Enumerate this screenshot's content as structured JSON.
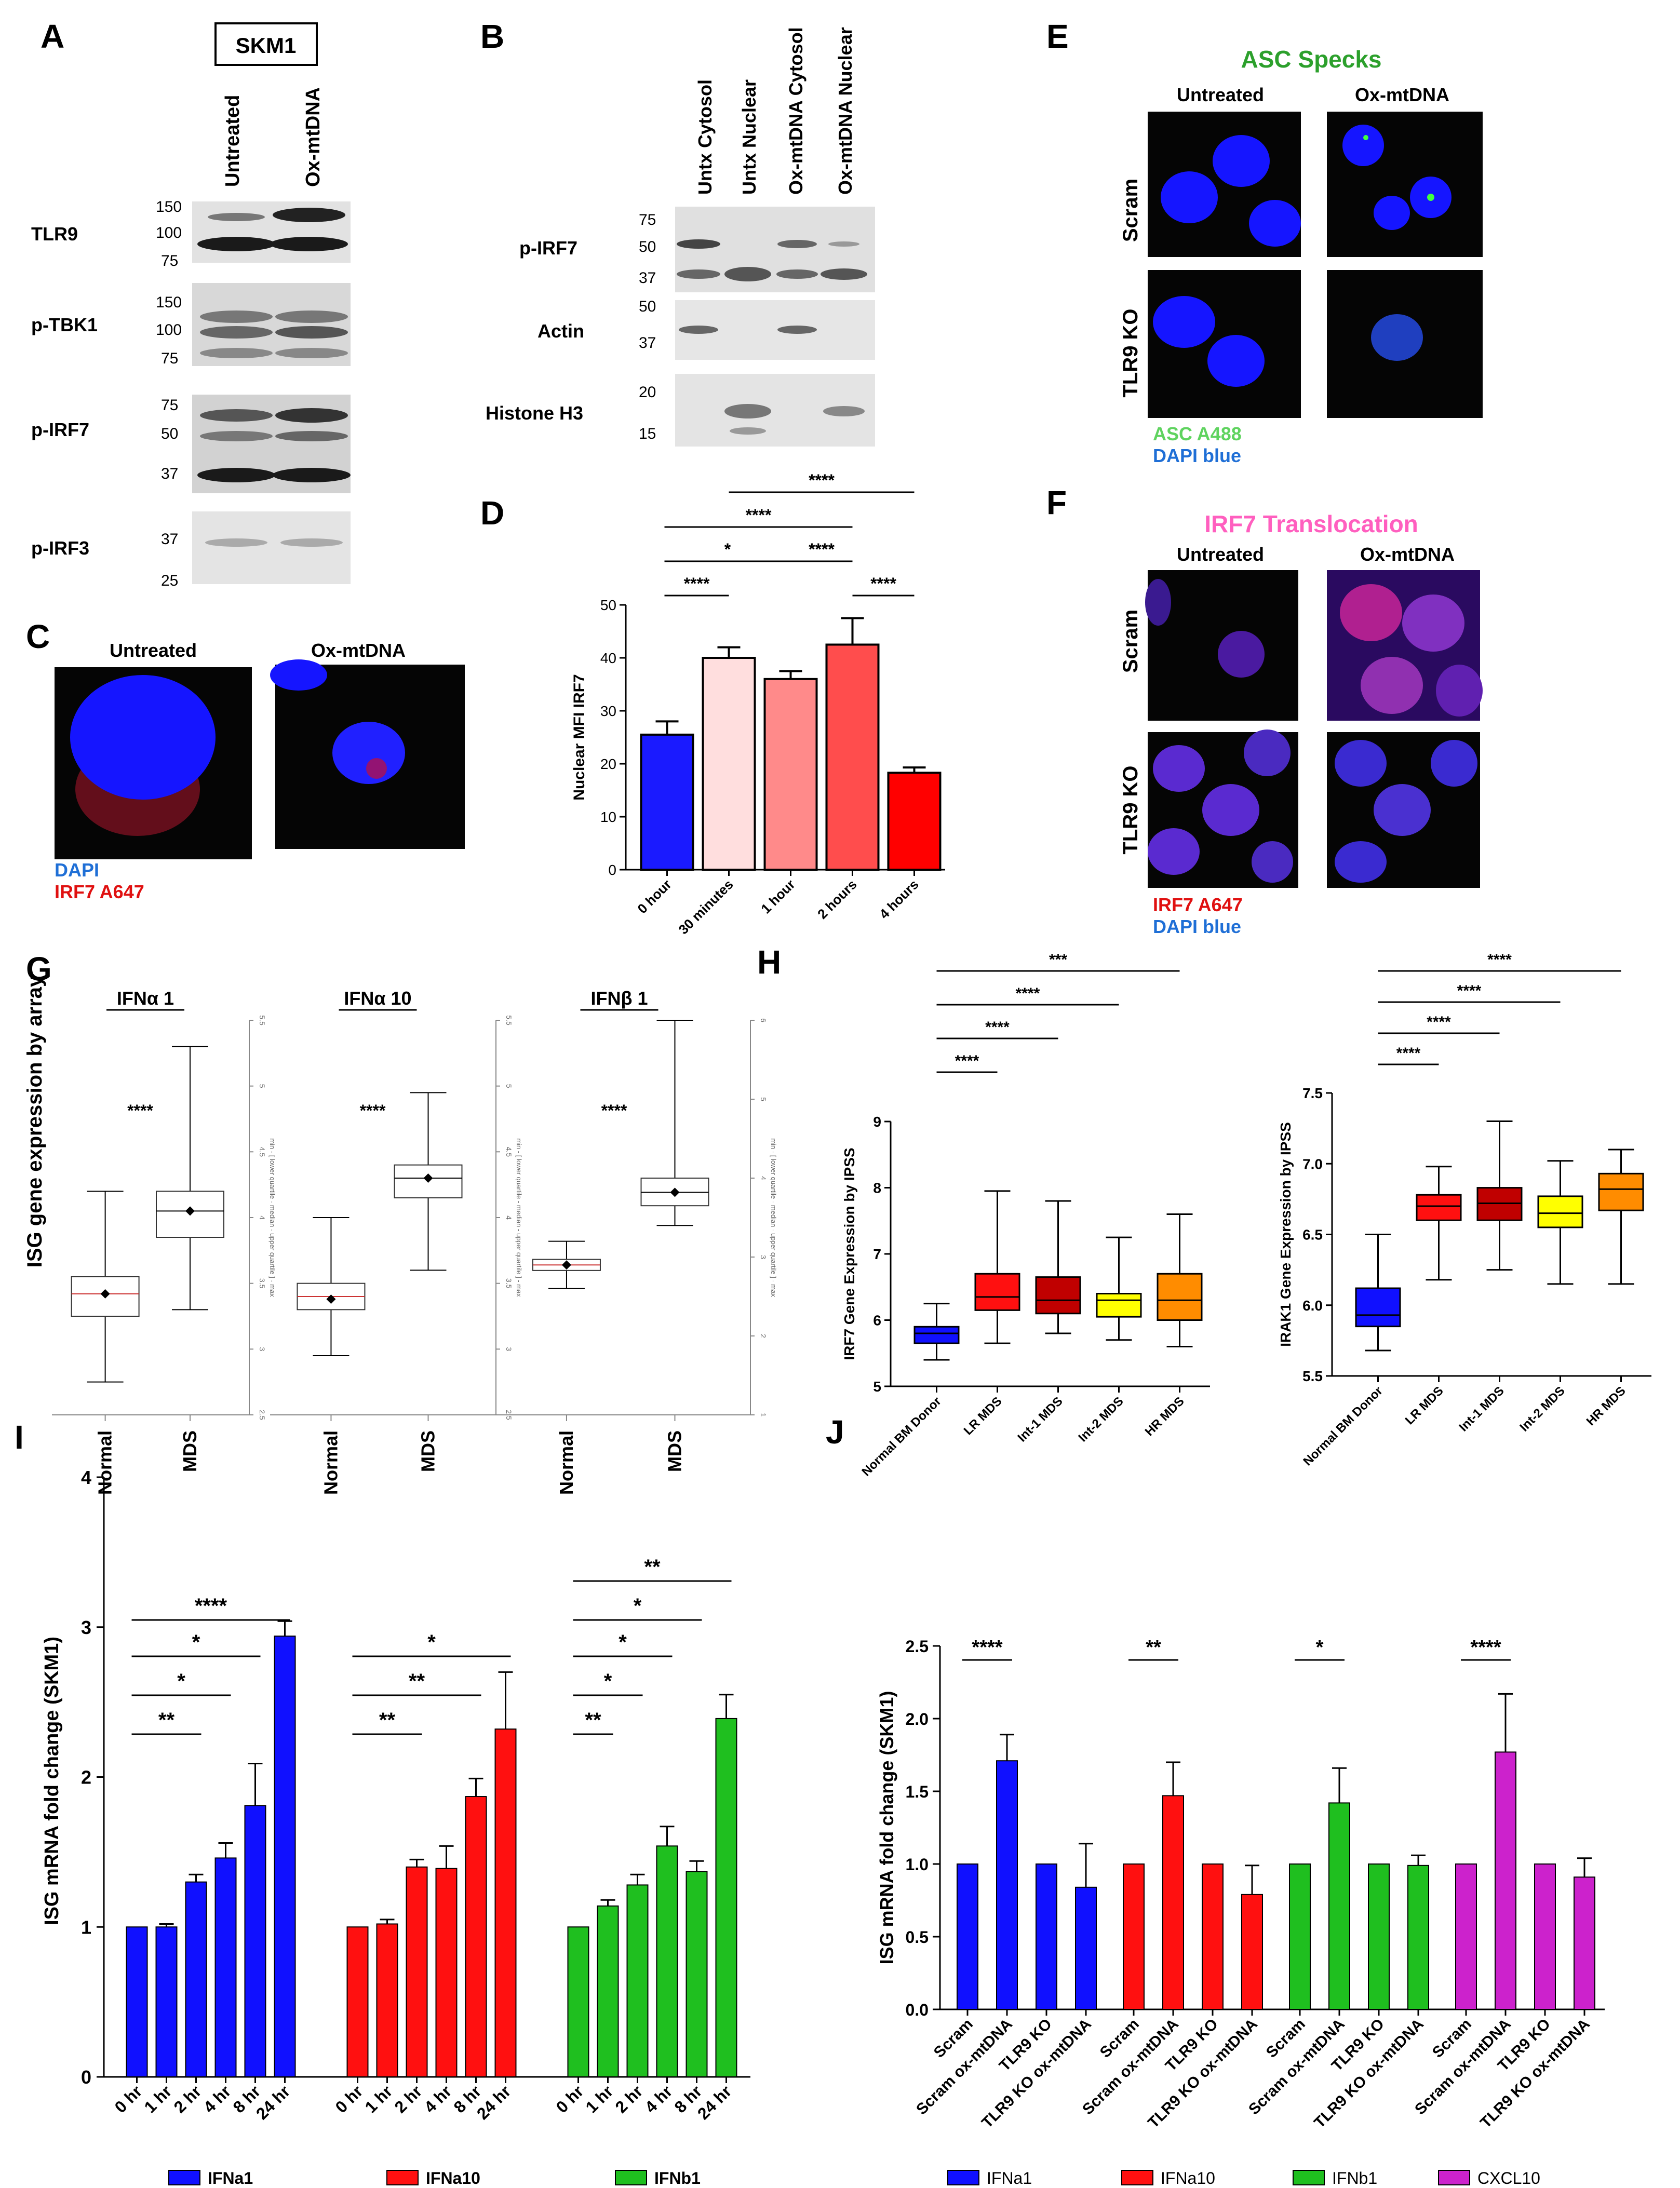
{
  "panel_letters": [
    "A",
    "B",
    "C",
    "D",
    "E",
    "F",
    "G",
    "H",
    "I",
    "J"
  ],
  "panelA": {
    "cell_line": "SKM1",
    "lanes": [
      "Untreated",
      "Ox-mtDNA"
    ],
    "blots": [
      {
        "label": "TLR9",
        "markers": [
          "150",
          "100",
          "75"
        ]
      },
      {
        "label": "p-TBK1",
        "markers": [
          "150",
          "100",
          "75"
        ]
      },
      {
        "label": "p-IRF7",
        "markers": [
          "75",
          "50",
          "37"
        ]
      },
      {
        "label": "p-IRF3",
        "markers": [
          "37",
          "25"
        ]
      }
    ]
  },
  "panelB": {
    "lanes": [
      "Untx Cytosol",
      "Untx Nuclear",
      "Ox-mtDNA Cytosol",
      "Ox-mtDNA Nuclear"
    ],
    "blots": [
      {
        "label": "p-IRF7",
        "markers": [
          "75",
          "50",
          "37"
        ]
      },
      {
        "label": "Actin",
        "markers": [
          "50",
          "37"
        ]
      },
      {
        "label": "Histone H3",
        "markers": [
          "20",
          "15"
        ]
      }
    ]
  },
  "panelC": {
    "conditions": [
      "Untreated",
      "Ox-mtDNA"
    ],
    "legend": [
      {
        "text": "DAPI",
        "color": "#1f6fd6"
      },
      {
        "text": "IRF7 A647",
        "color": "#e01010"
      }
    ]
  },
  "panelE": {
    "title": "ASC Specks",
    "title_color": "#2ca02c",
    "columns": [
      "Untreated",
      "Ox-mtDNA"
    ],
    "rows": [
      "Scram",
      "TLR9 KO"
    ],
    "legend": [
      {
        "text": "ASC A488",
        "color": "#5fd35f"
      },
      {
        "text": "DAPI blue",
        "color": "#1f6fd6"
      }
    ]
  },
  "panelF": {
    "title": "IRF7 Translocation",
    "title_color": "#ff5fbf",
    "columns": [
      "Untreated",
      "Ox-mtDNA"
    ],
    "rows": [
      "Scram",
      "TLR9 KO"
    ],
    "legend": [
      {
        "text": "IRF7 A647",
        "color": "#e01010"
      },
      {
        "text": "DAPI blue",
        "color": "#1f6fd6"
      }
    ]
  },
  "chart_data": [
    {
      "panel": "D",
      "type": "bar",
      "ylabel": "Nuclear MFI IRF7",
      "ylim": [
        0,
        50
      ],
      "yticks": [
        "0",
        "10",
        "20",
        "30",
        "40",
        "50"
      ],
      "categories": [
        "0 hour",
        "30 minutes",
        "1 hour",
        "2 hours",
        "4 hours"
      ],
      "values": [
        25.5,
        40,
        36,
        42.5,
        18.3
      ],
      "errors": [
        2.5,
        2,
        1.5,
        5,
        1
      ],
      "colors": [
        "#1a1aff",
        "#ffdede",
        "#ff8a8a",
        "#ff4d4d",
        "#ff0000"
      ],
      "significance": [
        {
          "from": 0,
          "to": 1,
          "label": "****"
        },
        {
          "from": 0,
          "to": 2,
          "label": "*"
        },
        {
          "from": 0,
          "to": 3,
          "label": "****"
        },
        {
          "from": 2,
          "to": 3,
          "label": "****"
        },
        {
          "from": 1,
          "to": 4,
          "label": "****"
        },
        {
          "from": 3,
          "to": 4,
          "label": "****"
        }
      ]
    },
    {
      "panel": "G",
      "type": "box",
      "ylabel": "ISG gene expression by array",
      "side_axis_label": "min - [ lower quartile - median - upper quartile ] - max",
      "plots": [
        {
          "title": "IFNα 1",
          "categories": [
            "Normal",
            "MDS"
          ],
          "significance": "****",
          "side_ticks": [
            "2.5",
            "3",
            "3.5",
            "4",
            "4.5",
            "5",
            "5.5"
          ],
          "boxes": [
            {
              "min": 2.75,
              "q1": 3.25,
              "median": 3.42,
              "q3": 3.55,
              "max": 4.2,
              "mean": 3.42
            },
            {
              "min": 3.3,
              "q1": 3.85,
              "median": 4.05,
              "q3": 4.2,
              "max": 5.3,
              "mean": 4.05
            }
          ]
        },
        {
          "title": "IFNα 10",
          "categories": [
            "Normal",
            "MDS"
          ],
          "significance": "****",
          "side_ticks": [
            "2.5",
            "3",
            "3.5",
            "4",
            "4.5",
            "5",
            "5.5"
          ],
          "boxes": [
            {
              "min": 2.95,
              "q1": 3.3,
              "median": 3.4,
              "q3": 3.5,
              "max": 4.0,
              "mean": 3.38
            },
            {
              "min": 3.6,
              "q1": 4.15,
              "median": 4.3,
              "q3": 4.4,
              "max": 4.95,
              "mean": 4.3
            }
          ]
        },
        {
          "title": "IFNβ 1",
          "categories": [
            "Normal",
            "MDS"
          ],
          "significance": "****",
          "side_ticks": [
            "1",
            "2",
            "3",
            "4",
            "5",
            "6"
          ],
          "boxes": [
            {
              "min": 2.6,
              "q1": 2.83,
              "median": 2.9,
              "q3": 2.97,
              "max": 3.2,
              "mean": 2.9
            },
            {
              "min": 3.4,
              "q1": 3.65,
              "median": 3.82,
              "q3": 4.0,
              "max": 6.0,
              "mean": 3.82
            }
          ]
        }
      ]
    },
    {
      "panel": "H",
      "type": "box",
      "ylabel": "IRF7 Gene Expression by IPSS",
      "ylim": [
        5,
        9
      ],
      "yticks": [
        "5",
        "6",
        "7",
        "8",
        "9"
      ],
      "categories": [
        "Normal BM Donor",
        "LR MDS",
        "Int-1 MDS",
        "Int-2 MDS",
        "HR MDS"
      ],
      "colors": [
        "#1010ff",
        "#ff1010",
        "#c00000",
        "#ffff00",
        "#ff8c00"
      ],
      "boxes": [
        {
          "min": 5.4,
          "q1": 5.65,
          "median": 5.8,
          "q3": 5.9,
          "max": 6.25
        },
        {
          "min": 5.65,
          "q1": 6.15,
          "median": 6.35,
          "q3": 6.7,
          "max": 7.95
        },
        {
          "min": 5.8,
          "q1": 6.1,
          "median": 6.3,
          "q3": 6.65,
          "max": 7.8
        },
        {
          "min": 5.7,
          "q1": 6.05,
          "median": 6.3,
          "q3": 6.4,
          "max": 7.25
        },
        {
          "min": 5.6,
          "q1": 6.0,
          "median": 6.3,
          "q3": 6.7,
          "max": 7.6
        }
      ],
      "significance": [
        {
          "from": 0,
          "to": 1,
          "label": "****"
        },
        {
          "from": 0,
          "to": 2,
          "label": "****"
        },
        {
          "from": 0,
          "to": 3,
          "label": "****"
        },
        {
          "from": 0,
          "to": 4,
          "label": "***"
        }
      ]
    },
    {
      "panel": "H2",
      "type": "box",
      "ylabel": "IRAK1 Gene Expression by IPSS",
      "ylim": [
        5.5,
        7.5
      ],
      "yticks": [
        "5.5",
        "6.0",
        "6.5",
        "7.0",
        "7.5"
      ],
      "categories": [
        "Normal BM Donor",
        "LR MDS",
        "Int-1 MDS",
        "Int-2 MDS",
        "HR MDS"
      ],
      "colors": [
        "#1010ff",
        "#ff1010",
        "#c00000",
        "#ffff00",
        "#ff8c00"
      ],
      "boxes": [
        {
          "min": 5.68,
          "q1": 5.85,
          "median": 5.93,
          "q3": 6.12,
          "max": 6.5
        },
        {
          "min": 6.18,
          "q1": 6.6,
          "median": 6.7,
          "q3": 6.78,
          "max": 6.98
        },
        {
          "min": 6.25,
          "q1": 6.6,
          "median": 6.72,
          "q3": 6.83,
          "max": 7.3
        },
        {
          "min": 6.15,
          "q1": 6.55,
          "median": 6.65,
          "q3": 6.77,
          "max": 7.02
        },
        {
          "min": 6.15,
          "q1": 6.67,
          "median": 6.82,
          "q3": 6.93,
          "max": 7.1
        }
      ],
      "significance": [
        {
          "from": 0,
          "to": 1,
          "label": "****"
        },
        {
          "from": 0,
          "to": 2,
          "label": "****"
        },
        {
          "from": 0,
          "to": 3,
          "label": "****"
        },
        {
          "from": 0,
          "to": 4,
          "label": "****"
        }
      ]
    },
    {
      "panel": "I",
      "type": "bar",
      "ylabel": "ISG mRNA fold change (SKM1)",
      "ylim": [
        0,
        4
      ],
      "yticks": [
        "0",
        "1",
        "2",
        "3",
        "4"
      ],
      "categories": [
        "0 hr",
        "1 hr",
        "2 hr",
        "4 hr",
        "8 hr",
        "24 hr"
      ],
      "series": [
        {
          "name": "IFNa1",
          "color": "#1010ff",
          "values": [
            1.0,
            1.0,
            1.3,
            1.46,
            1.81,
            2.94
          ],
          "errors": [
            0,
            0.02,
            0.05,
            0.1,
            0.28,
            0.1
          ],
          "significance": [
            {
              "to": 2,
              "label": "**"
            },
            {
              "to": 3,
              "label": "*"
            },
            {
              "to": 4,
              "label": "*"
            },
            {
              "to": 5,
              "label": "****"
            }
          ]
        },
        {
          "name": "IFNa10",
          "color": "#ff1010",
          "values": [
            1.0,
            1.02,
            1.4,
            1.39,
            1.87,
            2.32
          ],
          "errors": [
            0,
            0.03,
            0.05,
            0.15,
            0.12,
            0.38
          ],
          "significance": [
            {
              "to": 2,
              "label": "**"
            },
            {
              "to": 4,
              "label": "**"
            },
            {
              "to": 5,
              "label": "*"
            }
          ]
        },
        {
          "name": "IFNb1",
          "color": "#1fbf1f",
          "values": [
            1.0,
            1.14,
            1.28,
            1.54,
            1.37,
            2.39
          ],
          "errors": [
            0,
            0.04,
            0.07,
            0.13,
            0.07,
            0.16
          ],
          "significance": [
            {
              "to": 1,
              "label": "**"
            },
            {
              "to": 2,
              "label": "*"
            },
            {
              "to": 3,
              "label": "*"
            },
            {
              "to": 4,
              "label": "*"
            },
            {
              "to": 5,
              "label": "**"
            }
          ]
        }
      ]
    },
    {
      "panel": "J",
      "type": "bar",
      "ylabel": "ISG mRNA fold change (SKM1)",
      "ylim": [
        0,
        2.5
      ],
      "yticks": [
        "0.0",
        "0.5",
        "1.0",
        "1.5",
        "2.0",
        "2.5"
      ],
      "categories": [
        "Scram",
        "Scram ox-mtDNA",
        "TLR9 KO",
        "TLR9 KO ox-mtDNA"
      ],
      "series": [
        {
          "name": "IFNa1",
          "color": "#1010ff",
          "values": [
            1.0,
            1.71,
            1.0,
            0.84
          ],
          "errors": [
            0,
            0.18,
            0,
            0.3
          ],
          "significance": "****"
        },
        {
          "name": "IFNa10",
          "color": "#ff1010",
          "values": [
            1.0,
            1.47,
            1.0,
            0.79
          ],
          "errors": [
            0,
            0.23,
            0,
            0.2
          ],
          "significance": "**"
        },
        {
          "name": "IFNb1",
          "color": "#1fbf1f",
          "values": [
            1.0,
            1.42,
            1.0,
            0.99
          ],
          "errors": [
            0,
            0.24,
            0,
            0.07
          ],
          "significance": "*"
        },
        {
          "name": "CXCL10",
          "color": "#cc22cc",
          "values": [
            1.0,
            1.77,
            1.0,
            0.91
          ],
          "errors": [
            0,
            0.4,
            0,
            0.13
          ],
          "significance": "****"
        }
      ]
    }
  ]
}
